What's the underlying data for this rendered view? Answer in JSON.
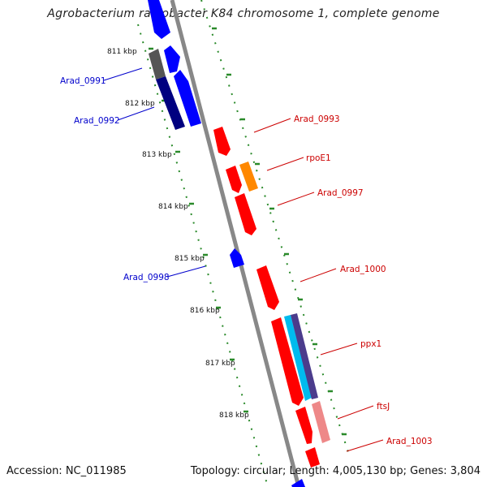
{
  "title": "Agrobacterium radiobacter K84 chromosome 1, complete genome",
  "footer": {
    "accession": "Accession: NC_011985",
    "summary": "Topology: circular; Length: 4,005,130 bp; Genes: 3,804"
  },
  "colors": {
    "forward": "#ff0000",
    "reverse": "#0000ff",
    "backbone": "#888888",
    "tick": "#2a8a2a",
    "label_forward": "#cc0000",
    "label_reverse": "#0000cc"
  },
  "scale_ticks": [
    {
      "label": "811 kbp"
    },
    {
      "label": "812 kbp"
    },
    {
      "label": "813 kbp"
    },
    {
      "label": "814 kbp"
    },
    {
      "label": "815 kbp"
    },
    {
      "label": "816 kbp"
    },
    {
      "label": "817 kbp"
    },
    {
      "label": "818 kbp"
    }
  ],
  "gene_labels": [
    {
      "name": "Arad_0991",
      "strand": "reverse"
    },
    {
      "name": "Arad_0992",
      "strand": "reverse"
    },
    {
      "name": "Arad_0993",
      "strand": "forward"
    },
    {
      "name": "rpoE1",
      "strand": "forward"
    },
    {
      "name": "Arad_0997",
      "strand": "forward"
    },
    {
      "name": "Arad_0998",
      "strand": "reverse"
    },
    {
      "name": "Arad_1000",
      "strand": "forward"
    },
    {
      "name": "ppx1",
      "strand": "forward"
    },
    {
      "name": "ftsJ",
      "strand": "forward"
    },
    {
      "name": "Arad_1003",
      "strand": "forward"
    }
  ]
}
